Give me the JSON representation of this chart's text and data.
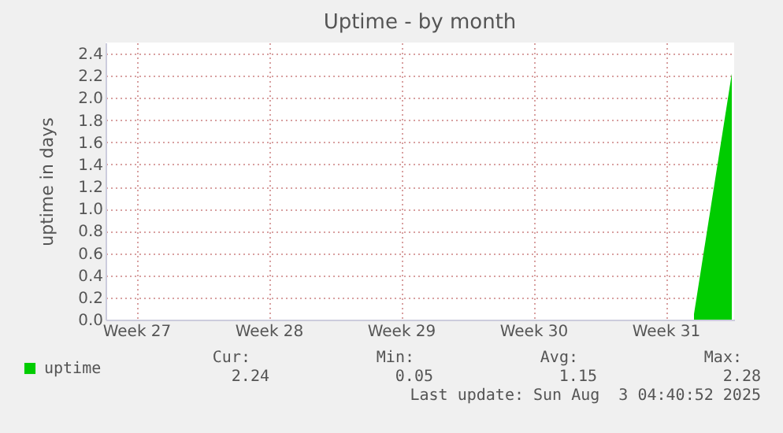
{
  "chart_data": {
    "type": "area",
    "title": "Uptime - by month",
    "ylabel": "uptime in days",
    "categories": [
      null,
      null,
      null,
      "Week 27",
      null,
      null,
      null,
      null,
      null,
      null,
      null,
      null,
      null,
      null,
      null,
      null,
      null,
      "Week 28",
      null,
      null,
      null,
      null,
      null,
      null,
      null,
      null,
      null,
      null,
      null,
      null,
      null,
      "Week 29",
      null,
      null,
      null,
      null,
      null,
      null,
      null,
      null,
      null,
      null,
      null,
      null,
      null,
      "Week 30",
      null,
      null,
      null,
      null,
      null,
      null,
      null,
      null,
      null,
      null,
      null,
      null,
      null,
      "Week 31",
      null,
      null,
      null,
      null,
      null,
      null,
      null
    ],
    "series": [
      {
        "name": "uptime",
        "color": "#00cc00",
        "values": [
          null,
          null,
          null,
          null,
          null,
          null,
          null,
          null,
          null,
          null,
          null,
          null,
          null,
          null,
          null,
          null,
          null,
          null,
          null,
          null,
          null,
          null,
          null,
          null,
          null,
          null,
          null,
          null,
          null,
          null,
          null,
          null,
          null,
          null,
          null,
          null,
          null,
          null,
          null,
          null,
          null,
          null,
          null,
          null,
          null,
          null,
          null,
          null,
          null,
          null,
          null,
          null,
          null,
          null,
          null,
          null,
          null,
          null,
          null,
          null,
          null,
          null,
          0.05,
          null,
          null,
          null,
          2.22
        ]
      }
    ],
    "ylim": [
      0,
      2.5
    ],
    "yticks": [
      {
        "value": 0,
        "label": "0.0"
      },
      {
        "value": 0.2,
        "label": "0.2"
      },
      {
        "value": 0.4,
        "label": "0.4"
      },
      {
        "value": 0.6,
        "label": "0.6"
      },
      {
        "value": 0.8,
        "label": "0.8"
      },
      {
        "value": 1,
        "label": "1.0"
      },
      {
        "value": 1.2,
        "label": "1.2"
      },
      {
        "value": 1.4,
        "label": "1.4"
      },
      {
        "value": 1.6,
        "label": "1.6"
      },
      {
        "value": 1.8,
        "label": "1.8"
      },
      {
        "value": 2,
        "label": "2.0"
      },
      {
        "value": 2.2,
        "label": "2.2"
      },
      {
        "value": 2.4,
        "label": "2.4"
      }
    ],
    "grid": true,
    "legend": "bottom left",
    "annotations": [
      "Cur:",
      "2.24",
      "Min:",
      "0.05",
      "Avg:",
      "1.15",
      "Max:",
      "2.28",
      "Last update: Sun Aug  3 04:40:52 2025"
    ]
  }
}
